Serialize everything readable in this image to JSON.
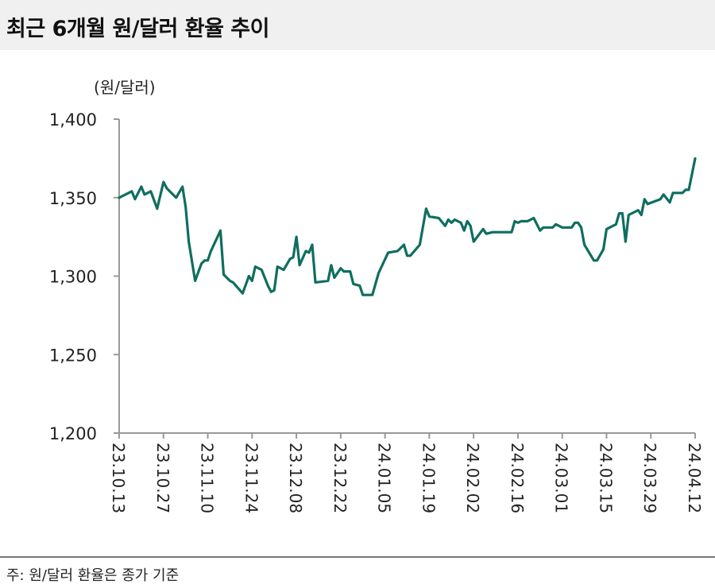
{
  "title": "최근 6개월 원/달러 환율 추이",
  "note": "주: 원/달러 환율은 종가 기준",
  "chart_data": {
    "type": "line",
    "title": "최근 6개월 원/달러 환율 추이",
    "ylabel": "(원/달러)",
    "xlabel": "",
    "ylim": [
      1200,
      1400
    ],
    "xlim": [
      "2023-10-13",
      "2024-04-12"
    ],
    "yticks": [
      1200,
      1250,
      1300,
      1350,
      1400
    ],
    "ytick_labels": [
      "1,200",
      "1,250",
      "1,300",
      "1,350",
      "1,400"
    ],
    "xticks": [
      "2023-10-13",
      "2023-10-27",
      "2023-11-10",
      "2023-11-24",
      "2023-12-08",
      "2023-12-22",
      "2024-01-05",
      "2024-01-19",
      "2024-02-02",
      "2024-02-16",
      "2024-03-01",
      "2024-03-15",
      "2024-03-29",
      "2024-04-12"
    ],
    "xtick_labels": [
      "23.10.13",
      "23.10.27",
      "23.11.10",
      "23.11.24",
      "23.12.08",
      "23.12.22",
      "24.01.05",
      "24.01.19",
      "24.02.02",
      "24.02.16",
      "24.03.01",
      "24.03.15",
      "24.03.29",
      "24.04.12"
    ],
    "grid": false,
    "line_color": "#0f6e5f",
    "points": [
      [
        "2023-10-13",
        1350
      ],
      [
        "2023-10-17",
        1354
      ],
      [
        "2023-10-18",
        1349
      ],
      [
        "2023-10-20",
        1357
      ],
      [
        "2023-10-21",
        1352
      ],
      [
        "2023-10-23",
        1354
      ],
      [
        "2023-10-25",
        1343
      ],
      [
        "2023-10-27",
        1360
      ],
      [
        "2023-10-28",
        1356
      ],
      [
        "2023-10-31",
        1350
      ],
      [
        "2023-11-02",
        1357
      ],
      [
        "2023-11-03",
        1344
      ],
      [
        "2023-11-04",
        1322
      ],
      [
        "2023-11-06",
        1297
      ],
      [
        "2023-11-08",
        1308
      ],
      [
        "2023-11-09",
        1310
      ],
      [
        "2023-11-10",
        1310
      ],
      [
        "2023-11-11",
        1316
      ],
      [
        "2023-11-14",
        1329
      ],
      [
        "2023-11-15",
        1301
      ],
      [
        "2023-11-17",
        1297
      ],
      [
        "2023-11-18",
        1296
      ],
      [
        "2023-11-21",
        1289
      ],
      [
        "2023-11-23",
        1300
      ],
      [
        "2023-11-24",
        1297
      ],
      [
        "2023-11-25",
        1306
      ],
      [
        "2023-11-27",
        1304
      ],
      [
        "2023-11-29",
        1294
      ],
      [
        "2023-11-30",
        1290
      ],
      [
        "2023-12-01",
        1291
      ],
      [
        "2023-12-02",
        1306
      ],
      [
        "2023-12-04",
        1304
      ],
      [
        "2023-12-06",
        1311
      ],
      [
        "2023-12-07",
        1312
      ],
      [
        "2023-12-08",
        1325
      ],
      [
        "2023-12-09",
        1307
      ],
      [
        "2023-12-11",
        1316
      ],
      [
        "2023-12-12",
        1315
      ],
      [
        "2023-12-13",
        1320
      ],
      [
        "2023-12-14",
        1296
      ],
      [
        "2023-12-18",
        1297
      ],
      [
        "2023-12-19",
        1307
      ],
      [
        "2023-12-20",
        1299
      ],
      [
        "2023-12-22",
        1305
      ],
      [
        "2023-12-23",
        1303
      ],
      [
        "2023-12-25",
        1303
      ],
      [
        "2023-12-26",
        1295
      ],
      [
        "2023-12-28",
        1294
      ],
      [
        "2023-12-29",
        1288
      ],
      [
        "2024-01-01",
        1288
      ],
      [
        "2024-01-03",
        1302
      ],
      [
        "2024-01-06",
        1315
      ],
      [
        "2024-01-09",
        1316
      ],
      [
        "2024-01-11",
        1320
      ],
      [
        "2024-01-12",
        1313
      ],
      [
        "2024-01-13",
        1313
      ],
      [
        "2024-01-16",
        1320
      ],
      [
        "2024-01-18",
        1343
      ],
      [
        "2024-01-19",
        1338
      ],
      [
        "2024-01-22",
        1337
      ],
      [
        "2024-01-24",
        1332
      ],
      [
        "2024-01-25",
        1336
      ],
      [
        "2024-01-26",
        1334
      ],
      [
        "2024-01-27",
        1336
      ],
      [
        "2024-01-29",
        1334
      ],
      [
        "2024-01-30",
        1329
      ],
      [
        "2024-01-31",
        1335
      ],
      [
        "2024-02-01",
        1332
      ],
      [
        "2024-02-02",
        1322
      ],
      [
        "2024-02-05",
        1330
      ],
      [
        "2024-02-06",
        1327
      ],
      [
        "2024-02-08",
        1328
      ],
      [
        "2024-02-14",
        1328
      ],
      [
        "2024-02-15",
        1335
      ],
      [
        "2024-02-16",
        1334
      ],
      [
        "2024-02-17",
        1335
      ],
      [
        "2024-02-19",
        1335
      ],
      [
        "2024-02-21",
        1337
      ],
      [
        "2024-02-23",
        1329
      ],
      [
        "2024-02-24",
        1331
      ],
      [
        "2024-02-27",
        1331
      ],
      [
        "2024-02-28",
        1333
      ],
      [
        "2024-03-01",
        1331
      ],
      [
        "2024-03-04",
        1331
      ],
      [
        "2024-03-05",
        1334
      ],
      [
        "2024-03-06",
        1334
      ],
      [
        "2024-03-07",
        1331
      ],
      [
        "2024-03-08",
        1320
      ],
      [
        "2024-03-11",
        1310
      ],
      [
        "2024-03-12",
        1310
      ],
      [
        "2024-03-14",
        1317
      ],
      [
        "2024-03-15",
        1330
      ],
      [
        "2024-03-18",
        1333
      ],
      [
        "2024-03-19",
        1340
      ],
      [
        "2024-03-20",
        1340
      ],
      [
        "2024-03-21",
        1322
      ],
      [
        "2024-03-22",
        1339
      ],
      [
        "2024-03-25",
        1342
      ],
      [
        "2024-03-26",
        1339
      ],
      [
        "2024-03-27",
        1349
      ],
      [
        "2024-03-28",
        1346
      ],
      [
        "2024-04-01",
        1349
      ],
      [
        "2024-04-02",
        1352
      ],
      [
        "2024-04-04",
        1347
      ],
      [
        "2024-04-05",
        1353
      ],
      [
        "2024-04-08",
        1353
      ],
      [
        "2024-04-09",
        1355
      ],
      [
        "2024-04-10",
        1355
      ],
      [
        "2024-04-12",
        1375
      ]
    ]
  }
}
